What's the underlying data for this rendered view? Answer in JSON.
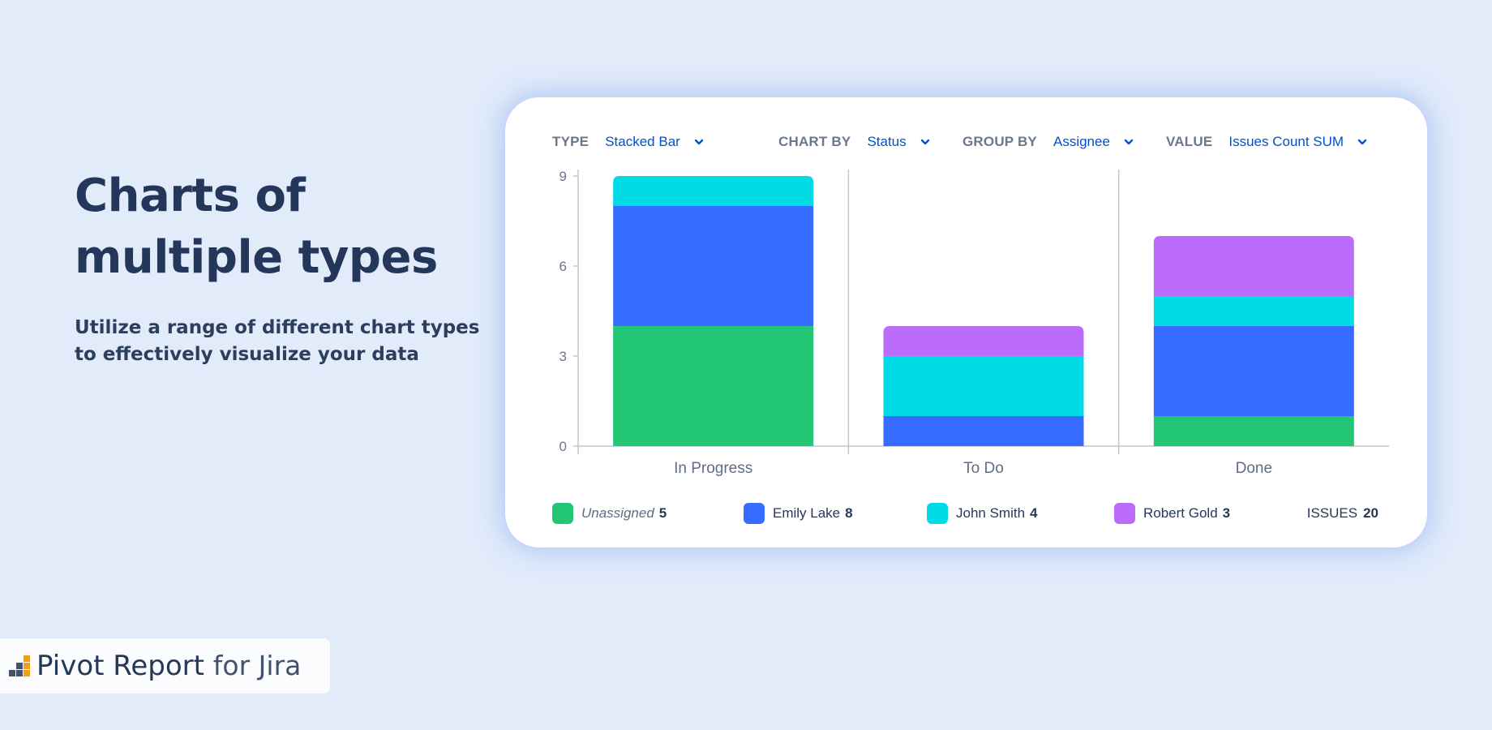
{
  "hero": {
    "title_lines": [
      "Charts of",
      "multiple types"
    ],
    "subtitle_lines": [
      "Utilize a range of different chart types",
      "to effectively visualize your data"
    ]
  },
  "toolbar": {
    "type": {
      "label": "TYPE",
      "value": "Stacked Bar"
    },
    "chart_by": {
      "label": "CHART BY",
      "value": "Status"
    },
    "group_by": {
      "label": "GROUP BY",
      "value": "Assignee"
    },
    "value": {
      "label": "VALUE",
      "value": "Issues Count SUM"
    }
  },
  "legend": {
    "items": [
      {
        "name": "Unassigned",
        "count": "5"
      },
      {
        "name": "Emily Lake",
        "count": "8"
      },
      {
        "name": "John Smith",
        "count": "4"
      },
      {
        "name": "Robert Gold",
        "count": "3"
      }
    ],
    "total_label": "ISSUES",
    "total_count": "20"
  },
  "brand": {
    "name": "Pivot Report",
    "suffix": "for Jira"
  },
  "colors": {
    "accent": "#0052cc",
    "unassigned": "#22c674",
    "emily_lake": "#366cff",
    "john_smith": "#00dbe6",
    "robert_gold": "#bc6cfa"
  },
  "chart_data": {
    "type": "bar",
    "stacked": true,
    "categories": [
      "In Progress",
      "To Do",
      "Done"
    ],
    "series": [
      {
        "name": "Unassigned",
        "values": [
          4,
          0,
          1
        ],
        "color": "#22c674"
      },
      {
        "name": "Emily Lake",
        "values": [
          4,
          1,
          3
        ],
        "color": "#366cff"
      },
      {
        "name": "John Smith",
        "values": [
          1,
          2,
          1
        ],
        "color": "#00dbe6"
      },
      {
        "name": "Robert Gold",
        "values": [
          0,
          1,
          2
        ],
        "color": "#bc6cfa"
      }
    ],
    "y_ticks": [
      0,
      3,
      6,
      9
    ],
    "ylim": [
      0,
      9
    ],
    "grid": false
  }
}
